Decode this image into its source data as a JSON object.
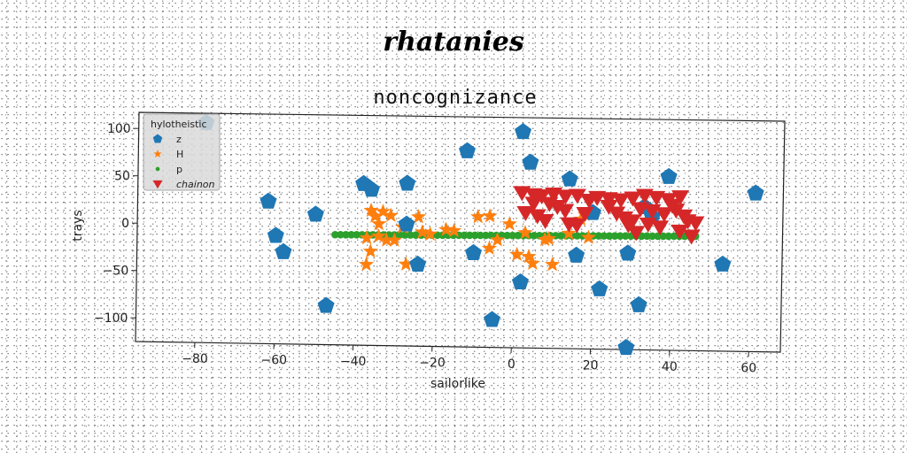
{
  "suptitle": "rhatanies",
  "chart_data": {
    "type": "scatter",
    "title": "noncognizance",
    "xlabel": "sailorlike",
    "ylabel": "trays",
    "xlim": [
      -95,
      68
    ],
    "ylim": [
      -125,
      117
    ],
    "xticks": [
      -80,
      -60,
      -40,
      -20,
      0,
      20,
      40,
      60
    ],
    "yticks": [
      -100,
      -50,
      0,
      50,
      100
    ],
    "xtick_labels": [
      "−80",
      "−60",
      "−40",
      "−20",
      "0",
      "20",
      "40",
      "60"
    ],
    "ytick_labels": [
      "−100",
      "−50",
      "0",
      "50",
      "100"
    ],
    "grid": false,
    "legend": {
      "title": "hylotheistic",
      "placement": "top-left"
    },
    "series": [
      {
        "name": "z",
        "marker": "pentagon",
        "color": "#1f77b4",
        "points": [
          [
            -78,
            107
          ],
          [
            -62,
            25
          ],
          [
            -60,
            -11
          ],
          [
            -58,
            -28
          ],
          [
            -50,
            12
          ],
          [
            -47,
            -84
          ],
          [
            -38,
            45
          ],
          [
            -36,
            39
          ],
          [
            -27,
            46
          ],
          [
            -27,
            3
          ],
          [
            -24,
            -39
          ],
          [
            -12,
            81
          ],
          [
            -10,
            -26
          ],
          [
            -5,
            -96
          ],
          [
            2,
            102
          ],
          [
            2,
            -56
          ],
          [
            4,
            70
          ],
          [
            14,
            53
          ],
          [
            16,
            -27
          ],
          [
            20,
            18
          ],
          [
            22,
            -62
          ],
          [
            29,
            -24
          ],
          [
            29,
            -123
          ],
          [
            32,
            -78
          ],
          [
            33,
            25
          ],
          [
            35,
            15
          ],
          [
            39,
            57
          ],
          [
            53,
            -34
          ],
          [
            61,
            41
          ]
        ]
      },
      {
        "name": "H",
        "marker": "star",
        "color": "#ff7f0e",
        "points": [
          [
            -36,
            17
          ],
          [
            -35,
            11
          ],
          [
            -33,
            16
          ],
          [
            -31,
            12
          ],
          [
            -34,
            3
          ],
          [
            -37,
            -12
          ],
          [
            -36,
            -26
          ],
          [
            -37,
            -40
          ],
          [
            -34,
            -10
          ],
          [
            -32,
            -14
          ],
          [
            -30,
            -14
          ],
          [
            -28,
            0
          ],
          [
            -27,
            -39
          ],
          [
            -24,
            -40
          ],
          [
            -24,
            11
          ],
          [
            -23,
            -5
          ],
          [
            -21,
            -7
          ],
          [
            -17,
            -2
          ],
          [
            -15,
            -3
          ],
          [
            -9,
            12
          ],
          [
            -6,
            13
          ],
          [
            -6,
            -21
          ],
          [
            -4,
            -12
          ],
          [
            -1,
            5
          ],
          [
            1,
            -27
          ],
          [
            3,
            -4
          ],
          [
            4,
            -29
          ],
          [
            5,
            -36
          ],
          [
            8,
            -11
          ],
          [
            9,
            -10
          ],
          [
            10,
            -37
          ],
          [
            14,
            -4
          ],
          [
            17,
            11
          ],
          [
            18,
            16
          ],
          [
            19,
            -8
          ]
        ]
      },
      {
        "name": "p",
        "marker": "circle",
        "color": "#2ca02c",
        "x_range": [
          -45,
          46
        ],
        "count": 68,
        "y_start": -9,
        "y_end": -5
      },
      {
        "name": "chainon",
        "marker": "triangle-down",
        "color": "#d62728",
        "points": [
          [
            2,
            38
          ],
          [
            5,
            36
          ],
          [
            7,
            35
          ],
          [
            10,
            37
          ],
          [
            13,
            35
          ],
          [
            16,
            36
          ],
          [
            19,
            31
          ],
          [
            21,
            34
          ],
          [
            24,
            33
          ],
          [
            27,
            32
          ],
          [
            30,
            34
          ],
          [
            33,
            37
          ],
          [
            36,
            35
          ],
          [
            39,
            33
          ],
          [
            42,
            36
          ],
          [
            5,
            27
          ],
          [
            9,
            27
          ],
          [
            11,
            24
          ],
          [
            13,
            20
          ],
          [
            18,
            17
          ],
          [
            24,
            25
          ],
          [
            26,
            18
          ],
          [
            28,
            13
          ],
          [
            30,
            10
          ],
          [
            32,
            23
          ],
          [
            35,
            21
          ],
          [
            38,
            18
          ],
          [
            41,
            22
          ],
          [
            43,
            16
          ],
          [
            3,
            17
          ],
          [
            6,
            14
          ],
          [
            8,
            9
          ],
          [
            14,
            6
          ],
          [
            16,
            5
          ],
          [
            29,
            6
          ],
          [
            34,
            7
          ],
          [
            37,
            4
          ],
          [
            44,
            11
          ],
          [
            46,
            9
          ],
          [
            42,
            0
          ],
          [
            45,
            -5
          ],
          [
            31,
            -2
          ],
          [
            40,
            27
          ]
        ]
      }
    ]
  }
}
